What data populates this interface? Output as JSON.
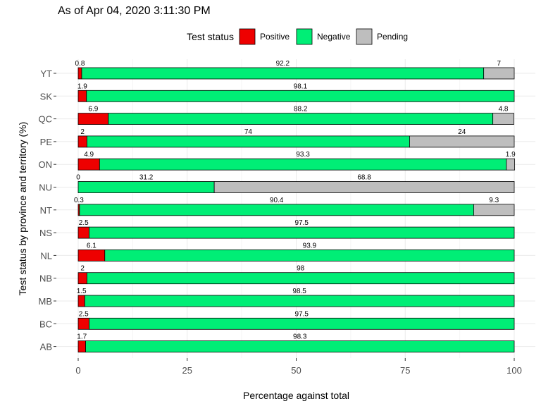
{
  "chart_data": {
    "type": "bar",
    "orientation": "horizontal",
    "stacked": true,
    "title": "As of  Apr 04, 2020 3:11:30 PM",
    "xlabel": "Percentage against total",
    "ylabel": "Test status by province and territory (%)",
    "xlim": [
      0,
      100
    ],
    "xticks": [
      0,
      25,
      50,
      75,
      100
    ],
    "grid": true,
    "legend_title": "Test status",
    "legend_position": "top",
    "categories": [
      "YT",
      "SK",
      "QC",
      "PE",
      "ON",
      "NU",
      "NT",
      "NS",
      "NL",
      "NB",
      "MB",
      "BC",
      "AB"
    ],
    "series": [
      {
        "name": "Positive",
        "color": "#ee0000",
        "values": [
          0.8,
          1.9,
          6.9,
          2,
          4.9,
          0,
          0.3,
          2.5,
          6.1,
          2,
          1.5,
          2.5,
          1.7
        ]
      },
      {
        "name": "Negative",
        "color": "#00ee76",
        "values": [
          92.2,
          98.1,
          88.2,
          74,
          93.3,
          31.2,
          90.4,
          97.5,
          93.9,
          98,
          98.5,
          97.5,
          98.3
        ]
      },
      {
        "name": "Pending",
        "color": "#bebebe",
        "values": [
          7,
          null,
          4.8,
          24,
          1.9,
          68.8,
          9.3,
          null,
          null,
          null,
          null,
          null,
          null
        ]
      }
    ]
  }
}
